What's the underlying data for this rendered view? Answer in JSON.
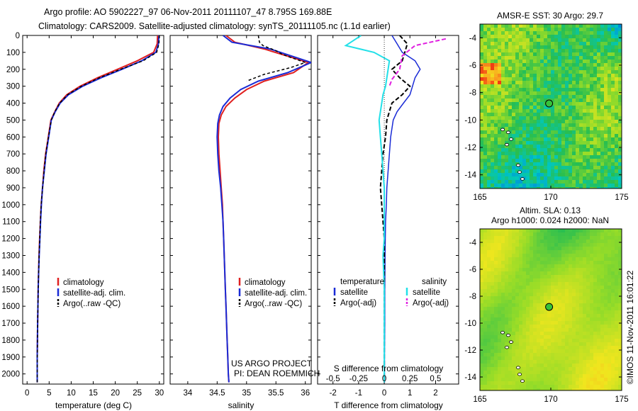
{
  "header": {
    "title_line1": "Argo profile: AO 5902227_97 06-Nov-2011 20111107_47 8.795S 169.88E",
    "title_line2": "Climatology: CARS2009. Satellite-adjusted climatology: synTS_20111105.nc (1.1d earlier)"
  },
  "credits": {
    "project": "US ARGO PROJECT",
    "pi": "PI: DEAN ROEMMICH",
    "imos_stamp": "©IMOS 11-Nov-2011 16:01:22"
  },
  "colors": {
    "climatology": "#e02020",
    "satellite": "#1a2bd6",
    "argo": "#000000",
    "salinity_satellite": "#22e0e8",
    "salinity_argo": "#e020e0"
  },
  "chart_data": [
    {
      "type": "line",
      "name": "temperature-profile",
      "xlabel": "temperature (deg C)",
      "xlim": [
        -1,
        31
      ],
      "xticks": [
        0,
        5,
        10,
        15,
        20,
        25,
        30
      ],
      "ylim": [
        2060,
        0
      ],
      "yticks": [
        0,
        100,
        200,
        300,
        400,
        500,
        600,
        700,
        800,
        900,
        1000,
        1100,
        1200,
        1300,
        1400,
        1500,
        1600,
        1700,
        1800,
        1900,
        2000
      ],
      "series": [
        {
          "name": "climatology",
          "color": "#e02020",
          "x": [
            29.6,
            29.5,
            28.7,
            25.0,
            20.5,
            16.0,
            12.0,
            9.0,
            7.3,
            6.3,
            5.4,
            4.8,
            4.2,
            3.8,
            3.5,
            3.2,
            3.0,
            2.85,
            2.7,
            2.6,
            2.5,
            2.45,
            2.4,
            2.35,
            2.3,
            2.3
          ],
          "y": [
            0,
            50,
            100,
            150,
            200,
            250,
            300,
            350,
            400,
            450,
            500,
            600,
            700,
            800,
            900,
            1000,
            1100,
            1200,
            1300,
            1400,
            1500,
            1600,
            1700,
            1800,
            1900,
            2050
          ]
        },
        {
          "name": "satellite-adj. clim.",
          "color": "#1a2bd6",
          "x": [
            29.9,
            29.8,
            29.2,
            26.0,
            21.5,
            16.8,
            12.6,
            9.4,
            7.5,
            6.4,
            5.5,
            4.9,
            4.3,
            3.9,
            3.5,
            3.25,
            3.05,
            2.9,
            2.75,
            2.62,
            2.52,
            2.46,
            2.4,
            2.35,
            2.3,
            2.3
          ],
          "y": [
            0,
            50,
            100,
            150,
            200,
            250,
            300,
            350,
            400,
            450,
            500,
            600,
            700,
            800,
            900,
            1000,
            1100,
            1200,
            1300,
            1400,
            1500,
            1600,
            1700,
            1800,
            1900,
            2050
          ]
        },
        {
          "name": "Argo(..raw -QC)",
          "color": "#000000",
          "x": [
            30.0,
            29.9,
            29.4,
            26.3,
            21.2,
            16.4,
            12.3,
            9.2,
            7.4,
            6.3,
            5.5,
            4.85,
            4.25,
            3.85,
            3.5,
            3.2,
            3.0,
            2.88,
            2.73,
            2.62,
            2.52,
            2.46,
            2.4,
            2.36,
            2.32,
            2.3
          ],
          "y": [
            0,
            50,
            100,
            150,
            200,
            250,
            300,
            350,
            400,
            450,
            500,
            600,
            700,
            800,
            900,
            1000,
            1100,
            1200,
            1300,
            1400,
            1500,
            1600,
            1700,
            1800,
            1900,
            2050
          ]
        }
      ],
      "legend": [
        "climatology",
        "satellite-adj. clim.",
        "Argo(..raw -QC)"
      ],
      "legend_position": "lower-middle"
    },
    {
      "type": "line",
      "name": "salinity-profile",
      "xlabel": "salinity",
      "xlim": [
        33.7,
        36.1
      ],
      "xticks": [
        34,
        34.5,
        35,
        35.5,
        36
      ],
      "xticklabels": [
        "34",
        "34.5",
        "35",
        "35.5",
        "36"
      ],
      "ylim": [
        2060,
        0
      ],
      "series": [
        {
          "name": "climatology",
          "color": "#e02020",
          "x": [
            34.65,
            34.8,
            35.3,
            36.05,
            35.8,
            35.3,
            35.0,
            34.8,
            34.65,
            34.57,
            34.53,
            34.52,
            34.53,
            34.55,
            34.57,
            34.59,
            34.6,
            34.61,
            34.62,
            34.63,
            34.64,
            34.65,
            34.66,
            34.67,
            34.68,
            34.69,
            34.7
          ],
          "y": [
            0,
            40,
            80,
            160,
            220,
            270,
            320,
            370,
            420,
            470,
            520,
            600,
            700,
            800,
            900,
            1000,
            1100,
            1200,
            1300,
            1400,
            1500,
            1600,
            1700,
            1800,
            1900,
            2000,
            2050
          ]
        },
        {
          "name": "satellite-adj. clim.",
          "color": "#1a2bd6",
          "x": [
            34.6,
            34.75,
            35.4,
            36.1,
            35.7,
            35.2,
            34.9,
            34.72,
            34.6,
            34.54,
            34.51,
            34.5,
            34.51,
            34.53,
            34.56,
            34.58,
            34.6,
            34.61,
            34.62,
            34.63,
            34.64,
            34.65,
            34.66,
            34.67,
            34.68,
            34.69,
            34.7
          ],
          "y": [
            0,
            40,
            80,
            160,
            220,
            270,
            320,
            370,
            420,
            470,
            520,
            600,
            700,
            800,
            900,
            1000,
            1100,
            1200,
            1300,
            1400,
            1500,
            1600,
            1700,
            1800,
            1900,
            2000,
            2050
          ]
        },
        {
          "name": "Argo(..raw -QC)",
          "color": "#000000",
          "x": [
            35.2,
            35.22,
            35.28,
            35.5,
            35.6,
            35.75,
            36.0,
            35.75,
            35.3,
            35.0
          ],
          "y": [
            0,
            40,
            60,
            90,
            110,
            130,
            160,
            190,
            230,
            270
          ]
        }
      ],
      "legend": [
        "climatology",
        "satellite-adj. clim.",
        "Argo(..raw -QC)"
      ],
      "legend_position": "lower-middle"
    },
    {
      "type": "line",
      "name": "difference-profile",
      "xlabel": "T difference from climatology",
      "top_xlabel": "S difference from climatology",
      "xlim": [
        -2.6,
        2.9
      ],
      "xticks": [
        -2,
        -1,
        0,
        1,
        2
      ],
      "top_xticks": [
        -0.5,
        -0.25,
        0,
        0.25,
        0.5
      ],
      "top_xticklabels": [
        "-0.5",
        "-0.25",
        "0",
        "0.25",
        "0.5"
      ],
      "ylim": [
        2060,
        0
      ],
      "series": [
        {
          "name": "temperature satellite",
          "color": "#1a2bd6",
          "x": [
            0.3,
            0.5,
            0.7,
            1.2,
            1.4,
            1.2,
            1.1,
            1.0,
            0.75,
            0.5,
            0.35,
            0.25,
            0.2,
            0.15,
            0.1,
            0.08,
            0.05,
            0.04,
            0.03,
            0.02,
            0.02,
            0.01,
            0.01,
            0.01
          ],
          "y": [
            0,
            50,
            100,
            150,
            200,
            250,
            300,
            350,
            400,
            450,
            500,
            600,
            700,
            800,
            900,
            1000,
            1100,
            1200,
            1300,
            1500,
            1700,
            1900,
            2000,
            2050
          ]
        },
        {
          "name": "temperature Argo(-adj)",
          "color": "#000000",
          "x": [
            0.6,
            0.9,
            0.8,
            0.7,
            0.3,
            0.6,
            1.0,
            0.7,
            0.3,
            0.2,
            0.1,
            0.05,
            -0.05,
            -0.1,
            -0.15,
            -0.1,
            -0.05,
            0.0,
            0.0,
            0.0,
            0.0,
            0.0,
            0.0,
            0.0
          ],
          "y": [
            0,
            50,
            100,
            150,
            200,
            250,
            300,
            350,
            400,
            450,
            500,
            600,
            700,
            800,
            900,
            1000,
            1100,
            1200,
            1300,
            1500,
            1700,
            1900,
            2000,
            2050
          ]
        },
        {
          "name": "salinity satellite",
          "color": "#22e0e8",
          "x": [
            -0.9,
            -1.5,
            -0.4,
            0.2,
            0.15,
            0.1,
            0.05,
            -0.05,
            -0.1,
            -0.2,
            -0.15,
            -0.1,
            -0.05,
            0.0,
            0.0,
            0.0,
            0.0,
            -0.05,
            0.0,
            0.0,
            0.0,
            0.0,
            0.0
          ],
          "y": [
            0,
            60,
            100,
            150,
            200,
            250,
            300,
            350,
            400,
            500,
            600,
            700,
            800,
            900,
            1000,
            1100,
            1200,
            1300,
            1500,
            1700,
            1900,
            2000,
            2050
          ]
        },
        {
          "name": "salinity Argo(-adj)",
          "color": "#e020e0",
          "x": [
            2.4,
            1.2,
            0.7,
            0.6,
            0.3,
            0.2
          ],
          "y": [
            20,
            60,
            120,
            200,
            260,
            300
          ]
        }
      ],
      "legend_headers": [
        "temperature",
        "salinity"
      ],
      "legend": [
        "satellite",
        "Argo(-adj)",
        "satellite",
        "Argo(-adj)"
      ],
      "legend_position": "lower-middle"
    },
    {
      "type": "heatmap",
      "name": "sst-map",
      "title": "AMSR-E SST: 30  Argo: 29.7",
      "xlim": [
        165,
        175
      ],
      "ylim": [
        -15,
        -3
      ],
      "xticks": [
        165,
        170,
        175
      ],
      "yticks": [
        -4,
        -6,
        -8,
        -10,
        -12,
        -14
      ],
      "marker": {
        "lon": 169.88,
        "lat": -8.795
      }
    },
    {
      "type": "heatmap",
      "name": "sla-map",
      "title": "Altim. SLA: 0.13",
      "subtitle": "Argo h1000: 0.024 h2000: NaN",
      "xlim": [
        165,
        175
      ],
      "ylim": [
        -15,
        -3
      ],
      "xticks": [
        165,
        170,
        175
      ],
      "yticks": [
        -4,
        -6,
        -8,
        -10,
        -12,
        -14
      ],
      "marker": {
        "lon": 169.88,
        "lat": -8.795
      }
    }
  ]
}
